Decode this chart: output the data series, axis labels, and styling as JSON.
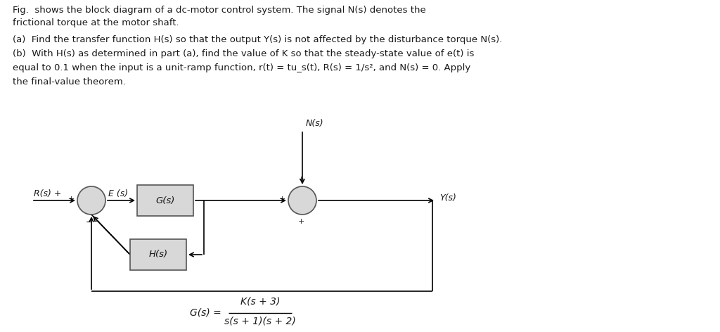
{
  "background_color": "#ffffff",
  "text_color": "#1a1a1a",
  "line1": "Fig.  shows the block diagram of a dc-motor control system. The signal N(s) denotes the",
  "line2": "frictional torque at the motor shaft.",
  "line3": "(a)  Find the transfer function H(s) so that the output Y(s) is not affected by the disturbance torque N(s).",
  "line4": "(b)  With H(s) as determined in part (a), find the value of K so that the steady-state value of e(t) is",
  "line5": "equal to 0.1 when the input is a unit-ramp function, r(t) = tu_s(t), R(s) = 1/s², and N(s) = 0. Apply",
  "line6": "the final-value theorem.",
  "G_label": "G(s)",
  "H_label": "H(s)",
  "R_label": "R(s)",
  "E_label": "E (s)",
  "N_label": "N(s)",
  "Y_label": "Y(s)",
  "Gs_prefix": "G(s) =",
  "Gs_num": "K(s + 3)",
  "Gs_den": "s(s + 1)(s + 2)"
}
